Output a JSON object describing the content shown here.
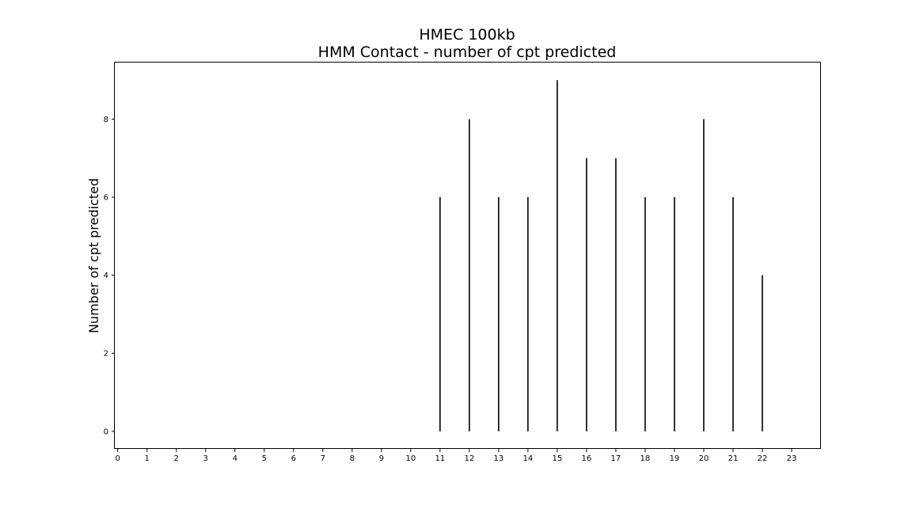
{
  "chart_data": {
    "type": "bar",
    "title": [
      "HMEC 100kb",
      "HMM Contact - number of cpt predicted"
    ],
    "xlabel": "",
    "ylabel": "Number of cpt predicted",
    "x_ticks": [
      "0",
      "1",
      "2",
      "3",
      "4",
      "5",
      "6",
      "7",
      "8",
      "9",
      "10",
      "11",
      "12",
      "13",
      "14",
      "15",
      "16",
      "17",
      "18",
      "19",
      "20",
      "21",
      "22",
      "23"
    ],
    "y_ticks": [
      0,
      2,
      4,
      6,
      8
    ],
    "xlim": [
      -0.1,
      24.0
    ],
    "ylim": [
      -0.45,
      9.45
    ],
    "x": [
      11,
      12,
      13,
      14,
      15,
      16,
      17,
      18,
      19,
      20,
      21,
      22
    ],
    "values": [
      6,
      8,
      6,
      6,
      9,
      7,
      7,
      6,
      6,
      8,
      6,
      4
    ],
    "grid": false,
    "colors": {
      "bar": "#000000",
      "axis": "#000000"
    }
  }
}
